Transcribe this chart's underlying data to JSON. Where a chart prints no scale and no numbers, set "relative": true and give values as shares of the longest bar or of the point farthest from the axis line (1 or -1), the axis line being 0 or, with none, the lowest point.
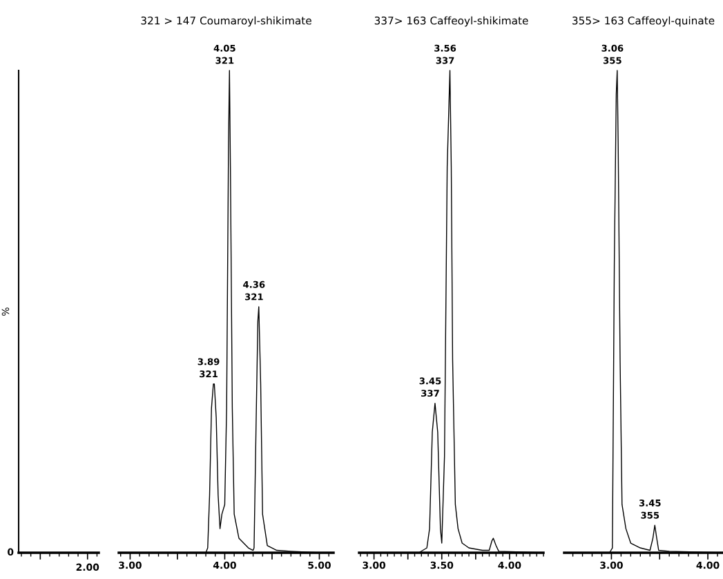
{
  "chart_data": [
    {
      "type": "other",
      "ylabel": "%",
      "annotations": [
        "0",
        "2.00"
      ]
    },
    {
      "type": "line",
      "title": "321 > 147 Coumaroyl-shikimate",
      "relative": true,
      "xlim": [
        2.88,
        5.15
      ],
      "xticks": [
        {
          "value": 3.0,
          "label": "3.00"
        },
        {
          "value": 3.5,
          "label": null
        },
        {
          "value": 4.0,
          "label": "4.00"
        },
        {
          "value": 4.5,
          "label": null
        },
        {
          "value": 5.0,
          "label": "5.00"
        }
      ],
      "annotations": [
        {
          "text": "3.89\n321",
          "x": 3.88,
          "y": 0.35
        },
        {
          "text": "4.05\n321",
          "x": 4.05,
          "y": 1.0
        },
        {
          "text": "4.36\n321",
          "x": 4.36,
          "y": 0.51
        }
      ],
      "series": [
        {
          "color": "#000000",
          "x": [
            2.88,
            3.8,
            3.82,
            3.84,
            3.86,
            3.88,
            3.89,
            3.91,
            3.93,
            3.95,
            3.97,
            4.0,
            4.02,
            4.04,
            4.05,
            4.06,
            4.08,
            4.1,
            4.15,
            4.25,
            4.3,
            4.31,
            4.33,
            4.35,
            4.36,
            4.38,
            4.4,
            4.45,
            4.55,
            4.7,
            5.0
          ],
          "values": [
            0,
            0,
            0.01,
            0.12,
            0.3,
            0.35,
            0.35,
            0.28,
            0.12,
            0.05,
            0.08,
            0.1,
            0.3,
            0.85,
            1.0,
            0.8,
            0.3,
            0.08,
            0.03,
            0.01,
            0.005,
            0.01,
            0.25,
            0.48,
            0.51,
            0.35,
            0.08,
            0.015,
            0.005,
            0.003,
            0
          ]
        }
      ]
    },
    {
      "type": "line",
      "title": "337> 163 Caffeoyl-shikimate",
      "relative": true,
      "xlim": [
        2.89,
        4.25
      ],
      "xticks": [
        {
          "value": 3.0,
          "label": "3.00"
        },
        {
          "value": 3.25,
          "label": null
        },
        {
          "value": 3.5,
          "label": "3.50"
        },
        {
          "value": 3.75,
          "label": null
        },
        {
          "value": 4.0,
          "label": "4.00"
        }
      ],
      "annotations": [
        {
          "text": "3.45\n337",
          "x": 3.45,
          "y": 0.31
        },
        {
          "text": "3.56\n337",
          "x": 3.56,
          "y": 1.0
        }
      ],
      "series": [
        {
          "color": "#000000",
          "x": [
            2.89,
            3.33,
            3.36,
            3.39,
            3.41,
            3.43,
            3.45,
            3.47,
            3.49,
            3.5,
            3.52,
            3.54,
            3.56,
            3.57,
            3.58,
            3.6,
            3.62,
            3.65,
            3.7,
            3.8,
            3.85,
            3.87,
            3.88,
            3.9,
            3.92,
            4.25
          ],
          "values": [
            0,
            0,
            0.005,
            0.01,
            0.05,
            0.25,
            0.31,
            0.25,
            0.05,
            0.02,
            0.2,
            0.8,
            1.0,
            0.8,
            0.4,
            0.1,
            0.05,
            0.02,
            0.01,
            0.005,
            0.005,
            0.025,
            0.03,
            0.015,
            0.003,
            0
          ]
        }
      ]
    },
    {
      "type": "line",
      "title": "355> 163 Caffeoyl-quinate",
      "relative": true,
      "xlim": [
        2.51,
        4.15
      ],
      "xticks": [
        {
          "value": 3.0,
          "label": "3.00"
        },
        {
          "value": 3.5,
          "label": null
        },
        {
          "value": 4.0,
          "label": "4.00"
        }
      ],
      "annotations": [
        {
          "text": "3.06\n355",
          "x": 3.06,
          "y": 1.0
        },
        {
          "text": "3.45\n355",
          "x": 3.45,
          "y": 0.057
        }
      ],
      "series": [
        {
          "color": "#000000",
          "x": [
            2.51,
            2.98,
            3.01,
            3.03,
            3.05,
            3.06,
            3.07,
            3.09,
            3.11,
            3.15,
            3.2,
            3.3,
            3.4,
            3.43,
            3.45,
            3.47,
            3.49,
            3.6,
            4.15
          ],
          "values": [
            0,
            0,
            0.01,
            0.6,
            0.95,
            1.0,
            0.85,
            0.4,
            0.1,
            0.05,
            0.02,
            0.01,
            0.005,
            0.03,
            0.057,
            0.03,
            0.005,
            0.003,
            0
          ]
        }
      ]
    }
  ]
}
